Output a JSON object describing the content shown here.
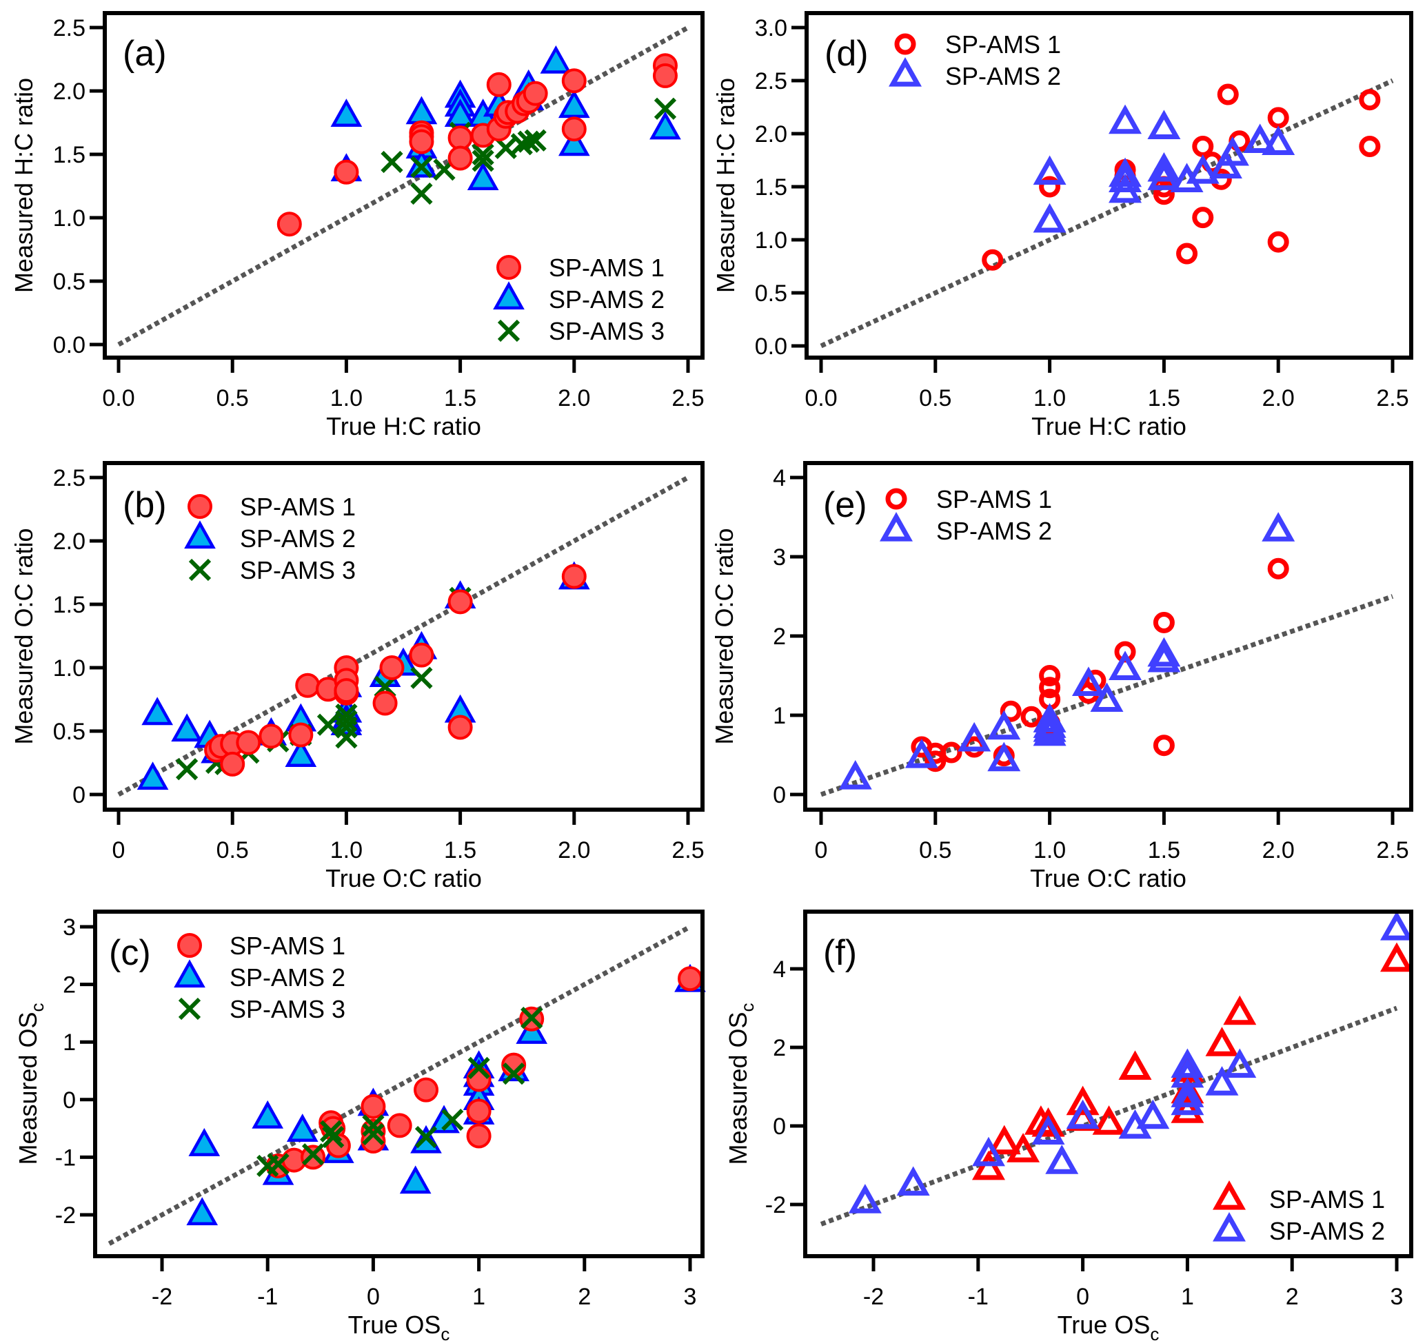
{
  "colors": {
    "sp1_fill": "#ff4d4d",
    "sp1_stroke": "#ff0000",
    "sp2_fill": "#00b0f0",
    "sp2_stroke": "#0000ff",
    "sp3": "#006400",
    "open_red": "#ff0000",
    "open_blue": "#4040ff",
    "refline": "#555555"
  },
  "chart_data": [
    {
      "id": "a",
      "type": "scatter",
      "panel_label": "(a)",
      "xlabel": "True H:C ratio",
      "ylabel": "Measured H:C ratio",
      "xlim": [
        0,
        2.5
      ],
      "ylim": [
        0,
        2.5
      ],
      "xticks": [
        "0.0",
        "0.5",
        "1.0",
        "1.5",
        "2.0",
        "2.5"
      ],
      "xtick_values": [
        0,
        0.5,
        1.0,
        1.5,
        2.0,
        2.5
      ],
      "yticks": [
        "0.0",
        "0.5",
        "1.0",
        "1.5",
        "2.0",
        "2.5"
      ],
      "ytick_values": [
        0,
        0.5,
        1.0,
        1.5,
        2.0,
        2.5
      ],
      "reference_line": "1:1",
      "legend_position": "bottom-right",
      "series": [
        {
          "name": "SP-AMS 2",
          "marker": "filled-triangle",
          "x": [
            1.0,
            1.0,
            1.33,
            1.33,
            1.33,
            1.5,
            1.5,
            1.5,
            1.6,
            1.6,
            1.67,
            1.8,
            1.8,
            1.92,
            2.0,
            2.0,
            2.4
          ],
          "y": [
            1.8,
            1.37,
            1.82,
            1.55,
            1.4,
            1.95,
            1.88,
            1.8,
            1.8,
            1.3,
            1.88,
            2.03,
            1.93,
            2.22,
            1.87,
            1.57,
            1.7
          ]
        },
        {
          "name": "SP-AMS 3",
          "marker": "x",
          "x": [
            1.2,
            1.33,
            1.33,
            1.43,
            1.5,
            1.6,
            1.6,
            1.7,
            1.77,
            1.8,
            1.83,
            2.4
          ],
          "y": [
            1.44,
            1.4,
            1.19,
            1.38,
            1.67,
            1.5,
            1.45,
            1.55,
            1.58,
            1.6,
            1.61,
            1.86
          ]
        },
        {
          "name": "SP-AMS 1",
          "marker": "filled-circle",
          "x": [
            0.75,
            1.0,
            1.33,
            1.33,
            1.33,
            1.5,
            1.5,
            1.6,
            1.67,
            1.67,
            1.7,
            1.71,
            1.75,
            1.78,
            1.8,
            1.83,
            2.0,
            2.0,
            2.4,
            2.4
          ],
          "y": [
            0.95,
            1.36,
            1.67,
            1.64,
            1.6,
            1.63,
            1.47,
            1.65,
            2.05,
            1.7,
            1.8,
            1.83,
            1.84,
            1.9,
            1.92,
            1.98,
            2.08,
            1.7,
            2.2,
            2.12
          ]
        }
      ]
    },
    {
      "id": "b",
      "type": "scatter",
      "panel_label": "(b)",
      "xlabel": "True O:C ratio",
      "ylabel": "Measured O:C ratio",
      "xlim": [
        0,
        2.5
      ],
      "ylim": [
        0,
        2.5
      ],
      "xticks": [
        "0",
        "0.5",
        "1.0",
        "1.5",
        "2.0",
        "2.5"
      ],
      "xtick_values": [
        0,
        0.5,
        1.0,
        1.5,
        2.0,
        2.5
      ],
      "yticks": [
        "0",
        "0.5",
        "1.0",
        "1.5",
        "2.0",
        "2.5"
      ],
      "ytick_values": [
        0,
        0.5,
        1.0,
        1.5,
        2.0,
        2.5
      ],
      "reference_line": "1:1",
      "legend_position": "top-left",
      "series": [
        {
          "name": "SP-AMS 2",
          "marker": "filled-triangle",
          "x": [
            0.15,
            0.17,
            0.3,
            0.4,
            0.43,
            0.67,
            0.8,
            0.8,
            1.0,
            1.0,
            1.0,
            1.0,
            1.17,
            1.25,
            1.33,
            1.5,
            1.5,
            2.0
          ],
          "y": [
            0.12,
            0.63,
            0.5,
            0.45,
            0.33,
            0.47,
            0.58,
            0.3,
            0.85,
            0.65,
            0.58,
            0.55,
            0.93,
            1.02,
            1.15,
            1.55,
            0.65,
            1.7
          ]
        },
        {
          "name": "SP-AMS 3",
          "marker": "x",
          "x": [
            0.3,
            0.43,
            0.47,
            0.57,
            0.7,
            0.8,
            0.92,
            1.0,
            1.0,
            1.0,
            1.0,
            1.17,
            1.33,
            1.5
          ],
          "y": [
            0.2,
            0.25,
            0.24,
            0.33,
            0.42,
            0.47,
            0.55,
            0.63,
            0.58,
            0.53,
            0.45,
            0.85,
            0.92,
            1.55
          ]
        },
        {
          "name": "SP-AMS 1",
          "marker": "filled-circle",
          "x": [
            0.43,
            0.45,
            0.5,
            0.5,
            0.57,
            0.67,
            0.8,
            0.83,
            0.92,
            1.0,
            1.0,
            1.0,
            1.0,
            1.17,
            1.2,
            1.33,
            1.5,
            1.5,
            2.0
          ],
          "y": [
            0.35,
            0.38,
            0.4,
            0.24,
            0.41,
            0.46,
            0.47,
            0.86,
            0.83,
            1.0,
            0.9,
            0.8,
            0.82,
            0.72,
            1.0,
            1.1,
            1.52,
            0.53,
            1.72
          ]
        }
      ]
    },
    {
      "id": "c",
      "type": "scatter",
      "panel_label": "(c)",
      "xlabel": "True OSc",
      "ylabel": "Measured OSc",
      "xlabel_main": "True OS",
      "ylabel_main": "Measured OS",
      "label_subscript": "c",
      "xlim": [
        -2.65,
        3.05
      ],
      "ylim": [
        -2.8,
        3.2
      ],
      "xticks": [
        "-2",
        "-1",
        "0",
        "1",
        "2",
        "3"
      ],
      "xtick_values": [
        -2,
        -1,
        0,
        1,
        2,
        3
      ],
      "yticks": [
        "-2",
        "-1",
        "0",
        "1",
        "2",
        "3"
      ],
      "ytick_values": [
        -2,
        -1,
        0,
        1,
        2,
        3
      ],
      "reference_line": "1:1",
      "reference_range": [
        -2.5,
        3
      ],
      "legend_position": "top-left",
      "series": [
        {
          "name": "SP-AMS 2",
          "marker": "filled-triangle",
          "x": [
            -1.6,
            -1.62,
            -1.0,
            -0.9,
            -0.67,
            -0.33,
            0.0,
            0.0,
            0.4,
            0.5,
            0.67,
            1.0,
            1.0,
            1.0,
            1.0,
            1.0,
            1.33,
            1.5,
            3.0
          ],
          "y": [
            -0.8,
            -2.0,
            -0.32,
            -1.3,
            -0.55,
            -0.92,
            -0.1,
            -0.7,
            -1.45,
            -0.75,
            -0.4,
            0.55,
            0.25,
            0.0,
            -0.25,
            0.4,
            0.5,
            1.15,
            2.05
          ]
        },
        {
          "name": "SP-AMS 1",
          "marker": "filled-circle",
          "x": [
            -0.9,
            -0.75,
            -0.57,
            -0.4,
            -0.38,
            -0.33,
            0.0,
            0.0,
            0.0,
            0.25,
            0.5,
            1.0,
            1.0,
            1.0,
            1.33,
            1.5,
            3.0
          ],
          "y": [
            -1.15,
            -1.05,
            -1.0,
            -0.4,
            -0.5,
            -0.8,
            -0.12,
            -0.55,
            -0.72,
            -0.45,
            0.17,
            0.35,
            -0.2,
            -0.63,
            0.6,
            1.4,
            2.1
          ]
        },
        {
          "name": "SP-AMS 3",
          "marker": "x",
          "x": [
            -1.0,
            -0.9,
            -0.57,
            -0.38,
            -0.4,
            0.0,
            0.0,
            0.5,
            0.75,
            1.0,
            1.33,
            1.5
          ],
          "y": [
            -1.15,
            -1.12,
            -0.95,
            -0.65,
            -0.55,
            -0.45,
            -0.6,
            -0.65,
            -0.35,
            0.55,
            0.45,
            1.42
          ]
        }
      ]
    },
    {
      "id": "d",
      "type": "scatter",
      "panel_label": "(d)",
      "xlabel": "True H:C ratio",
      "ylabel": "Measured H:C ratio",
      "xlim": [
        0,
        2.5
      ],
      "ylim": [
        0,
        3.0
      ],
      "xticks": [
        "0.0",
        "0.5",
        "1.0",
        "1.5",
        "2.0",
        "2.5"
      ],
      "xtick_values": [
        0,
        0.5,
        1.0,
        1.5,
        2.0,
        2.5
      ],
      "yticks": [
        "0.0",
        "0.5",
        "1.0",
        "1.5",
        "2.0",
        "2.5",
        "3.0"
      ],
      "ytick_values": [
        0,
        0.5,
        1.0,
        1.5,
        2.0,
        2.5,
        3.0
      ],
      "reference_line": "1:1",
      "legend_position": "top-left",
      "series": [
        {
          "name": "SP-AMS 1",
          "marker": "open-circle",
          "x": [
            0.75,
            1.0,
            1.33,
            1.33,
            1.5,
            1.5,
            1.5,
            1.6,
            1.67,
            1.67,
            1.71,
            1.75,
            1.78,
            1.83,
            2.0,
            2.0,
            2.4,
            2.4
          ],
          "y": [
            0.81,
            1.5,
            1.66,
            1.6,
            1.62,
            1.5,
            1.43,
            0.87,
            1.88,
            1.21,
            1.73,
            1.57,
            2.37,
            1.93,
            2.15,
            0.98,
            2.32,
            1.88
          ]
        },
        {
          "name": "SP-AMS 2",
          "marker": "open-triangle",
          "x": [
            1.0,
            1.0,
            1.33,
            1.33,
            1.33,
            1.33,
            1.5,
            1.5,
            1.5,
            1.6,
            1.67,
            1.77,
            1.8,
            1.92,
            2.0
          ],
          "y": [
            1.62,
            1.17,
            2.1,
            1.6,
            1.55,
            1.45,
            2.05,
            1.65,
            1.57,
            1.55,
            1.63,
            1.68,
            1.8,
            1.92,
            1.9
          ]
        }
      ]
    },
    {
      "id": "e",
      "type": "scatter",
      "panel_label": "(e)",
      "xlabel": "True O:C ratio",
      "ylabel": "Measured O:C ratio",
      "xlim": [
        0,
        2.5
      ],
      "ylim": [
        0,
        4
      ],
      "xticks": [
        "0",
        "0.5",
        "1.0",
        "1.5",
        "2.0",
        "2.5"
      ],
      "xtick_values": [
        0,
        0.5,
        1.0,
        1.5,
        2.0,
        2.5
      ],
      "yticks": [
        "0",
        "1",
        "2",
        "3",
        "4"
      ],
      "ytick_values": [
        0,
        1,
        2,
        3,
        4
      ],
      "reference_line": "1:1",
      "legend_position": "top-left",
      "series": [
        {
          "name": "SP-AMS 1",
          "marker": "open-circle",
          "x": [
            0.44,
            0.5,
            0.5,
            0.57,
            0.67,
            0.8,
            0.83,
            0.92,
            1.0,
            1.0,
            1.0,
            1.0,
            1.0,
            1.17,
            1.2,
            1.33,
            1.5,
            1.5,
            2.0
          ],
          "y": [
            0.6,
            0.52,
            0.42,
            0.53,
            0.6,
            0.49,
            1.05,
            0.98,
            1.5,
            1.35,
            1.2,
            0.9,
            0.85,
            1.28,
            1.44,
            1.8,
            2.17,
            0.62,
            2.85
          ]
        },
        {
          "name": "SP-AMS 2",
          "marker": "open-triangle",
          "x": [
            0.15,
            0.44,
            0.67,
            0.8,
            0.8,
            1.0,
            1.0,
            1.0,
            1.0,
            1.17,
            1.25,
            1.33,
            1.5,
            1.5,
            2.0
          ],
          "y": [
            0.2,
            0.47,
            0.68,
            0.83,
            0.43,
            0.92,
            0.85,
            0.8,
            0.75,
            1.38,
            1.18,
            1.58,
            1.75,
            1.68,
            3.33
          ]
        }
      ]
    },
    {
      "id": "f",
      "type": "scatter",
      "panel_label": "(f)",
      "xlabel": "True OSc",
      "ylabel": "Measured OSc",
      "xlabel_main": "True OS",
      "ylabel_main": "Measured OS",
      "label_subscript": "c",
      "xlim": [
        -2.65,
        3.05
      ],
      "ylim": [
        -3.4,
        5.4
      ],
      "xticks": [
        "-2",
        "-1",
        "0",
        "1",
        "2",
        "3"
      ],
      "xtick_values": [
        -2,
        -1,
        0,
        1,
        2,
        3
      ],
      "yticks": [
        "-2",
        "0",
        "2",
        "4"
      ],
      "ytick_values": [
        -2,
        0,
        2,
        4
      ],
      "reference_line": "1:1",
      "reference_range": [
        -2.5,
        3
      ],
      "legend_position": "bottom-right",
      "series": [
        {
          "name": "SP-AMS 1",
          "marker": "open-triangle",
          "x": [
            -0.9,
            -0.75,
            -0.57,
            -0.4,
            -0.33,
            0.0,
            0.0,
            0.25,
            0.5,
            1.0,
            1.0,
            1.0,
            1.33,
            1.5,
            3.0
          ],
          "y": [
            -1.1,
            -0.45,
            -0.65,
            0.05,
            0.0,
            0.55,
            0.15,
            0.05,
            1.45,
            1.4,
            0.85,
            0.35,
            2.05,
            2.85,
            4.2
          ]
        },
        {
          "name": "SP-AMS 2",
          "marker": "open-triangle",
          "x": [
            -2.08,
            -1.62,
            -0.9,
            -0.33,
            -0.2,
            0.0,
            0.5,
            0.67,
            1.0,
            1.0,
            1.0,
            1.0,
            1.33,
            1.5,
            3.0
          ],
          "y": [
            -1.95,
            -1.5,
            -0.75,
            -0.2,
            -0.95,
            0.2,
            -0.05,
            0.2,
            1.5,
            1.25,
            0.75,
            0.55,
            1.05,
            1.5,
            5.0
          ]
        }
      ]
    }
  ]
}
